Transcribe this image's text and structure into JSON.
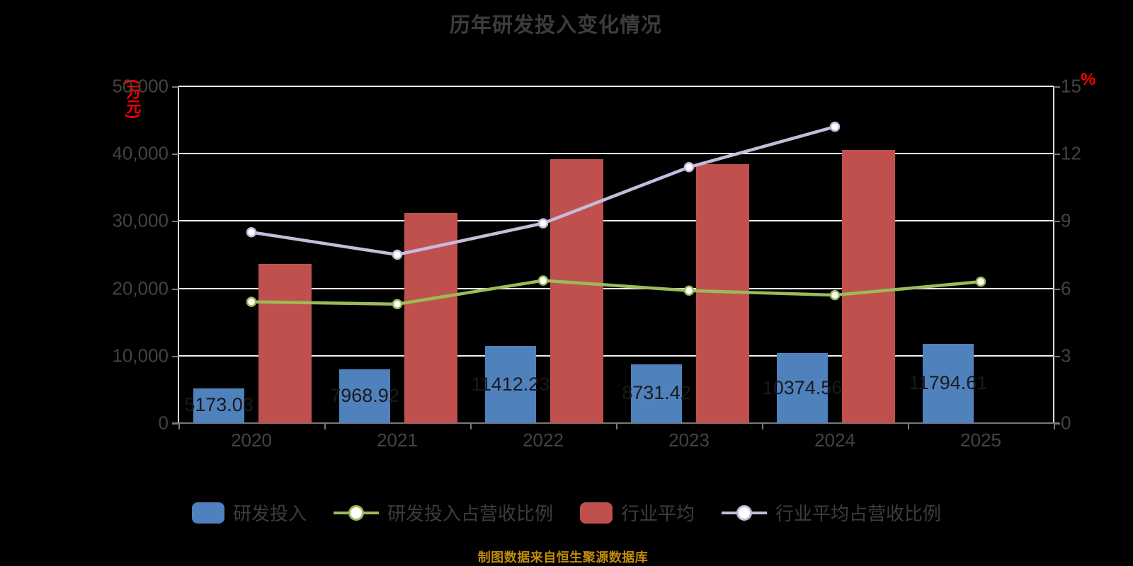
{
  "title": "历年研发投入变化情况",
  "caption": "制图数据来自恒生聚源数据库",
  "colors": {
    "background": "#000000",
    "grid": "#efefef",
    "axis_vertical": "#d9d9d9",
    "axis_bottom": "#787878",
    "tick_label": "#434343",
    "title_text": "#3c3c3c",
    "unit_label": "#fe0000",
    "bar_value_label": "#1a1a1a",
    "caption_text": "#bf8a0e",
    "rd_bar": "#4f81bd",
    "industry_bar": "#c0504d",
    "rd_ratio_line": "#9bbb59",
    "industry_ratio_line": "#c6bbdd",
    "marker_fill": "#ffffff"
  },
  "left_axis": {
    "unit": "(万元)",
    "max": 50000,
    "tick_values": [
      0,
      10000,
      20000,
      30000,
      40000,
      50000
    ],
    "tick_labels": [
      "0",
      "10,000",
      "20,000",
      "30,000",
      "40,000",
      "50,000"
    ]
  },
  "right_axis": {
    "unit": "%",
    "max": 15,
    "tick_values": [
      0,
      3,
      6,
      9,
      12,
      15
    ],
    "tick_labels": [
      "0",
      "3",
      "6",
      "9",
      "12",
      "15"
    ]
  },
  "chart_data": {
    "type": "bar",
    "subtype": "grouped-bars-with-lines",
    "title": "历年研发投入变化情况",
    "categories": [
      "2020",
      "2021",
      "2022",
      "2023",
      "2024",
      "2025"
    ],
    "grid": "on",
    "legend_position": "bottom",
    "series": [
      {
        "name": "研发投入",
        "type": "bar",
        "axis": "left",
        "color_key": "rd_bar",
        "values": [
          5173.03,
          7968.92,
          11412.23,
          8731.42,
          10374.56,
          11794.61
        ],
        "value_labels": [
          "5173.03",
          "7968.92",
          "11412.23",
          "8731.42",
          "10374.56",
          "11794.61"
        ]
      },
      {
        "name": "行业平均",
        "type": "bar",
        "axis": "left",
        "color_key": "industry_bar",
        "values": [
          23600,
          31200,
          39200,
          38400,
          40500,
          null
        ],
        "value_labels": []
      },
      {
        "name": "研发投入占营收比例",
        "type": "line",
        "axis": "right",
        "color_key": "rd_ratio_line",
        "values": [
          5.4,
          5.3,
          6.35,
          5.9,
          5.7,
          6.3
        ]
      },
      {
        "name": "行业平均占营收比例",
        "type": "line",
        "axis": "right",
        "color_key": "industry_ratio_line",
        "values": [
          8.5,
          7.5,
          8.9,
          11.4,
          13.2,
          null
        ]
      }
    ]
  },
  "legend": [
    {
      "label": "研发投入",
      "type": "bar",
      "color_key": "rd_bar"
    },
    {
      "label": "研发投入占营收比例",
      "type": "line",
      "color_key": "rd_ratio_line"
    },
    {
      "label": "行业平均",
      "type": "bar",
      "color_key": "industry_bar"
    },
    {
      "label": "行业平均占营收比例",
      "type": "line",
      "color_key": "industry_ratio_line"
    }
  ]
}
